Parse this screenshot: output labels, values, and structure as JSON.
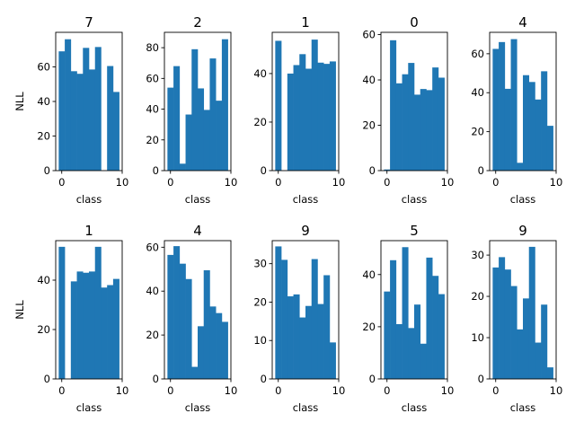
{
  "figure": {
    "background": "#ffffff",
    "bar_color": "#1f77b4"
  },
  "chart_data": [
    {
      "type": "bar",
      "title": "7",
      "xlabel": "class",
      "ylabel": "NLL",
      "categories": [
        0,
        1,
        2,
        3,
        4,
        5,
        6,
        7,
        8,
        9
      ],
      "values": [
        69,
        76,
        57.5,
        56,
        71,
        58.5,
        71.5,
        0,
        60.5,
        45.5
      ],
      "xlim": [
        -1,
        10
      ],
      "ylim": [
        0,
        80
      ],
      "xticks": [
        0,
        10
      ],
      "yticks": [
        0,
        20,
        40,
        60
      ]
    },
    {
      "type": "bar",
      "title": "2",
      "xlabel": "class",
      "ylabel": "",
      "categories": [
        0,
        1,
        2,
        3,
        4,
        5,
        6,
        7,
        8,
        9
      ],
      "values": [
        54,
        68,
        4.5,
        36.5,
        79,
        53.5,
        39.5,
        73,
        45.5,
        85.5
      ],
      "xlim": [
        -1,
        10
      ],
      "ylim": [
        0,
        90
      ],
      "xticks": [
        0,
        10
      ],
      "yticks": [
        0,
        20,
        40,
        60,
        80
      ]
    },
    {
      "type": "bar",
      "title": "1",
      "xlabel": "class",
      "ylabel": "",
      "categories": [
        0,
        1,
        2,
        3,
        4,
        5,
        6,
        7,
        8,
        9
      ],
      "values": [
        53.5,
        0,
        40,
        43.5,
        48,
        42,
        54,
        44.5,
        44,
        45
      ],
      "xlim": [
        -1,
        10
      ],
      "ylim": [
        0,
        57
      ],
      "xticks": [
        0,
        10
      ],
      "yticks": [
        0,
        20,
        40
      ]
    },
    {
      "type": "bar",
      "title": "0",
      "xlabel": "class",
      "ylabel": "",
      "categories": [
        0,
        1,
        2,
        3,
        4,
        5,
        6,
        7,
        8,
        9
      ],
      "values": [
        0.5,
        57.5,
        38.5,
        42.5,
        47.5,
        33.5,
        36,
        35.5,
        45.5,
        41
      ],
      "xlim": [
        -1,
        10
      ],
      "ylim": [
        0,
        61
      ],
      "xticks": [
        0,
        10
      ],
      "yticks": [
        0,
        20,
        40,
        60
      ]
    },
    {
      "type": "bar",
      "title": "4",
      "xlabel": "class",
      "ylabel": "",
      "categories": [
        0,
        1,
        2,
        3,
        4,
        5,
        6,
        7,
        8,
        9
      ],
      "values": [
        62.5,
        66,
        42,
        67.5,
        4,
        49,
        45.5,
        36.5,
        51,
        23
      ],
      "xlim": [
        -1,
        10
      ],
      "ylim": [
        0,
        71
      ],
      "xticks": [
        0,
        10
      ],
      "yticks": [
        0,
        20,
        40,
        60
      ]
    },
    {
      "type": "bar",
      "title": "1",
      "xlabel": "class",
      "ylabel": "NLL",
      "categories": [
        0,
        1,
        2,
        3,
        4,
        5,
        6,
        7,
        8,
        9
      ],
      "values": [
        53.5,
        0,
        39.5,
        43.5,
        43,
        43.5,
        53.5,
        37,
        38,
        40.5
      ],
      "xlim": [
        -1,
        10
      ],
      "ylim": [
        0,
        56
      ],
      "xticks": [
        0,
        10
      ],
      "yticks": [
        0,
        20,
        40
      ]
    },
    {
      "type": "bar",
      "title": "4",
      "xlabel": "class",
      "ylabel": "",
      "categories": [
        0,
        1,
        2,
        3,
        4,
        5,
        6,
        7,
        8,
        9
      ],
      "values": [
        56.5,
        60.5,
        52.5,
        45.5,
        5.5,
        24,
        49.5,
        33,
        30,
        26
      ],
      "xlim": [
        -1,
        10
      ],
      "ylim": [
        0,
        63
      ],
      "xticks": [
        0,
        10
      ],
      "yticks": [
        0,
        20,
        40,
        60
      ]
    },
    {
      "type": "bar",
      "title": "9",
      "xlabel": "class",
      "ylabel": "",
      "categories": [
        0,
        1,
        2,
        3,
        4,
        5,
        6,
        7,
        8,
        9
      ],
      "values": [
        34.5,
        31,
        21.5,
        22,
        16,
        19,
        31.2,
        19.5,
        27,
        9.5
      ],
      "xlim": [
        -1,
        10
      ],
      "ylim": [
        0,
        36
      ],
      "xticks": [
        0,
        10
      ],
      "yticks": [
        0,
        10,
        20,
        30
      ]
    },
    {
      "type": "bar",
      "title": "5",
      "xlabel": "class",
      "ylabel": "",
      "categories": [
        0,
        1,
        2,
        3,
        4,
        5,
        6,
        7,
        8,
        9
      ],
      "values": [
        33.5,
        45.5,
        21,
        50.5,
        19.5,
        28.5,
        13.5,
        46.5,
        39.5,
        32.5
      ],
      "xlim": [
        -1,
        10
      ],
      "ylim": [
        0,
        53
      ],
      "xticks": [
        0,
        10
      ],
      "yticks": [
        0,
        20,
        40
      ]
    },
    {
      "type": "bar",
      "title": "9",
      "xlabel": "class",
      "ylabel": "",
      "categories": [
        0,
        1,
        2,
        3,
        4,
        5,
        6,
        7,
        8,
        9
      ],
      "values": [
        27,
        29.5,
        26.5,
        22.5,
        12,
        19.5,
        32,
        8.8,
        18,
        2.8
      ],
      "xlim": [
        -1,
        10
      ],
      "ylim": [
        0,
        33.5
      ],
      "xticks": [
        0,
        10
      ],
      "yticks": [
        0,
        10,
        20,
        30
      ]
    }
  ]
}
